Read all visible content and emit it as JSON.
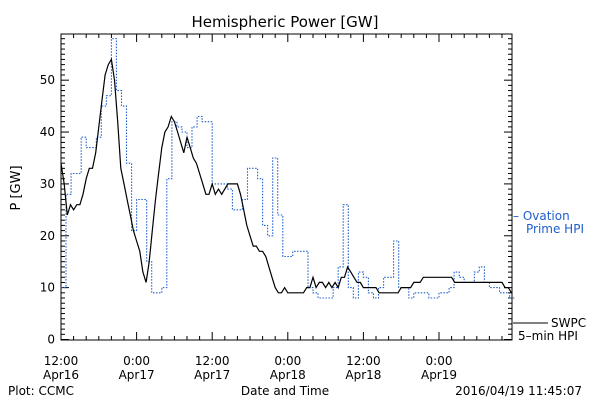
{
  "chart_data": {
    "type": "line",
    "title": "Hemispheric Power [GW]",
    "ylabel": "P [GW]",
    "xlabel": "Date and Time",
    "ylim": [
      0,
      59
    ],
    "y_ticks": [
      0,
      10,
      20,
      30,
      40,
      50
    ],
    "xlim": [
      12,
      132
    ],
    "x_unit": "hours since 2016-04-16 00:00",
    "x_ticks": [
      {
        "x": 12,
        "time": "12:00",
        "date": "Apr16"
      },
      {
        "x": 24,
        "time": "0:00",
        "date": "Apr17"
      },
      {
        "x": 36,
        "time": "12:00",
        "date": "Apr17"
      },
      {
        "x": 48,
        "time": "0:00",
        "date": "Apr18"
      },
      {
        "x": 60,
        "time": "12:00",
        "date": "Apr18"
      },
      {
        "x": 72,
        "time": "0:00",
        "date": "Apr19"
      }
    ],
    "grid": false,
    "legend_position": "right",
    "series": [
      {
        "name": "Ovation Prime HPI",
        "legend_line1": "– Ovation",
        "legend_line2": "Prime HPI",
        "style": "dotted-step",
        "color": "#1e5fd0",
        "x": [
          12.0,
          12.8,
          13.6,
          14.4,
          15.2,
          16.0,
          16.8,
          17.6,
          18.4,
          19.2,
          20.0,
          20.8,
          21.6,
          22.4,
          23.2,
          24.0,
          24.8,
          25.6,
          26.4,
          27.2,
          28.0,
          28.8,
          29.6,
          30.4,
          31.2,
          32.0,
          32.8,
          33.6,
          34.4,
          35.2,
          36.0,
          36.8,
          37.6,
          38.4,
          39.2,
          40.0,
          40.8,
          41.6,
          42.4,
          43.2,
          44.0,
          44.8,
          45.6,
          46.4,
          47.2,
          48.0,
          48.8,
          49.6,
          50.4,
          51.2,
          52.0,
          52.8,
          53.6,
          54.4,
          55.2,
          56.0,
          56.8,
          57.6,
          58.4,
          59.2,
          60.0,
          60.8,
          61.6,
          62.4,
          63.2,
          64.0,
          64.8,
          65.6,
          66.4,
          67.2,
          68.0,
          68.8,
          69.6,
          70.4,
          71.2,
          72.0,
          72.8,
          73.6,
          74.4,
          75.2,
          76.0,
          76.8,
          77.6,
          78.4,
          79.2,
          80.0,
          80.8,
          81.6,
          82.4,
          83.2
        ],
        "y": [
          10,
          28,
          32,
          32,
          39,
          37,
          37,
          39,
          45,
          47,
          58,
          48,
          45,
          34,
          21,
          27,
          27,
          15,
          9,
          9,
          10,
          31,
          42,
          41,
          40,
          37,
          41,
          43,
          42,
          42,
          30,
          30,
          30,
          29,
          25,
          25,
          27,
          33,
          33,
          31,
          22,
          20,
          35,
          24,
          16,
          16,
          17,
          17,
          17,
          10,
          9,
          8,
          8,
          8,
          10,
          14,
          26,
          10,
          8,
          13,
          12,
          9,
          8,
          10,
          12,
          12,
          19,
          10,
          10,
          8,
          9,
          9,
          9,
          8,
          8,
          9,
          9,
          10,
          13,
          12,
          11,
          11,
          13,
          14,
          11,
          10,
          10,
          9,
          9,
          8
        ]
      },
      {
        "name": "SWPC 5-min HPI",
        "legend_line1": "SWPC",
        "legend_line2": "5–min HPI",
        "style": "solid",
        "color": "#000000",
        "x": [
          12.0,
          12.5,
          13.0,
          13.5,
          14.0,
          14.5,
          15.0,
          15.5,
          16.0,
          16.5,
          17.0,
          17.5,
          18.0,
          18.5,
          19.0,
          19.5,
          20.0,
          20.5,
          21.0,
          21.5,
          22.0,
          22.5,
          23.0,
          23.5,
          24.0,
          24.5,
          25.0,
          25.5,
          26.0,
          26.5,
          27.0,
          27.5,
          28.0,
          28.5,
          29.0,
          29.5,
          30.0,
          30.5,
          31.0,
          31.5,
          32.0,
          32.5,
          33.0,
          33.5,
          34.0,
          34.5,
          35.0,
          35.5,
          36.0,
          36.5,
          37.0,
          37.5,
          38.0,
          38.5,
          39.0,
          39.5,
          40.0,
          40.5,
          41.0,
          41.5,
          42.0,
          42.5,
          43.0,
          43.5,
          44.0,
          44.5,
          45.0,
          45.5,
          46.0,
          46.5,
          47.0,
          47.5,
          48.0,
          48.5,
          49.0,
          49.5,
          50.0,
          50.5,
          51.0,
          51.5,
          52.0,
          52.5,
          53.0,
          53.5,
          54.0,
          54.5,
          55.0,
          55.5,
          56.0,
          56.5,
          57.0,
          57.5,
          58.0,
          58.5,
          59.0,
          59.5,
          60.0,
          60.5,
          61.0,
          61.5,
          62.0,
          62.5,
          63.0,
          63.5,
          64.0,
          64.5,
          65.0,
          65.5,
          66.0,
          66.5,
          67.0,
          67.5,
          68.0,
          68.5,
          69.0,
          69.5,
          70.0,
          70.5,
          71.0,
          71.5,
          72.0,
          72.5,
          73.0,
          73.5,
          74.0,
          74.5,
          75.0,
          75.5,
          76.0,
          76.5,
          77.0,
          77.5,
          78.0,
          78.5,
          79.0,
          79.5,
          80.0,
          80.5,
          81.0,
          81.5,
          82.0,
          82.5,
          83.0,
          83.5
        ],
        "y": [
          34,
          30,
          24,
          26,
          25,
          26,
          26,
          28,
          31,
          33,
          33,
          36,
          41,
          46,
          51,
          53,
          54,
          50,
          42,
          33,
          30,
          27,
          24,
          21,
          19,
          17,
          13,
          11,
          15,
          21,
          27,
          32,
          37,
          40,
          41,
          43,
          42,
          40,
          38,
          36,
          39,
          37,
          35,
          34,
          32,
          30,
          28,
          28,
          30,
          28,
          29,
          28,
          29,
          30,
          30,
          30,
          30,
          28,
          25,
          22,
          20,
          18,
          18,
          17,
          17,
          16,
          14,
          12,
          10,
          9,
          9,
          10,
          9,
          9,
          9,
          9,
          9,
          9,
          10,
          10,
          12,
          10,
          11,
          11,
          10,
          11,
          10,
          11,
          10,
          12,
          12,
          14,
          13,
          12,
          11,
          11,
          10,
          10,
          10,
          10,
          10,
          9,
          9,
          9,
          9,
          9,
          9,
          9,
          10,
          10,
          10,
          10,
          11,
          11,
          11,
          12,
          12,
          12,
          12,
          12,
          12,
          12,
          12,
          12,
          12,
          11,
          11,
          11,
          11,
          11,
          11,
          11,
          11,
          11,
          11,
          11,
          11,
          11,
          11,
          11,
          11,
          10,
          10,
          9
        ]
      }
    ],
    "footer_left": "Plot: CCMC",
    "footer_right": "2016/04/19 11:45:07"
  }
}
